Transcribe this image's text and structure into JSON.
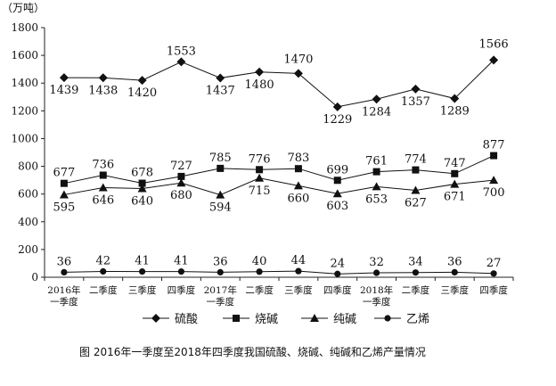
{
  "chart_data": {
    "type": "line",
    "unit_label": "（万吨）",
    "caption": "图    2016年一季度至2018年四季度我国硫酸、烧碱、纯碱和乙烯产量情况",
    "ylim": [
      0,
      1800
    ],
    "yticks": [
      "0",
      "200",
      "400",
      "600",
      "800",
      "1000",
      "1200",
      "1400",
      "1600",
      "1800"
    ],
    "grid": false,
    "legend_position": "bottom",
    "categories": [
      [
        "2016年",
        "一季度"
      ],
      [
        "二季度"
      ],
      [
        "三季度"
      ],
      [
        "四季度"
      ],
      [
        "2017年",
        "一季度"
      ],
      [
        "二季度"
      ],
      [
        "三季度"
      ],
      [
        "四季度"
      ],
      [
        "2018年",
        "一季度"
      ],
      [
        "二季度"
      ],
      [
        "三季度"
      ],
      [
        "四季度"
      ]
    ],
    "series": [
      {
        "name": "硫酸",
        "marker": "diamond",
        "values": [
          1439,
          1438,
          1420,
          1553,
          1437,
          1480,
          1470,
          1229,
          1284,
          1357,
          1289,
          1566
        ]
      },
      {
        "name": "烧碱",
        "marker": "square",
        "values": [
          677,
          736,
          678,
          727,
          785,
          776,
          783,
          699,
          761,
          774,
          747,
          877
        ]
      },
      {
        "name": "纯碱",
        "marker": "triangle",
        "values": [
          595,
          646,
          640,
          680,
          594,
          715,
          660,
          603,
          653,
          627,
          671,
          700
        ]
      },
      {
        "name": "乙烯",
        "marker": "circle",
        "values": [
          36,
          42,
          41,
          41,
          36,
          40,
          44,
          24,
          32,
          34,
          36,
          27
        ]
      }
    ]
  }
}
